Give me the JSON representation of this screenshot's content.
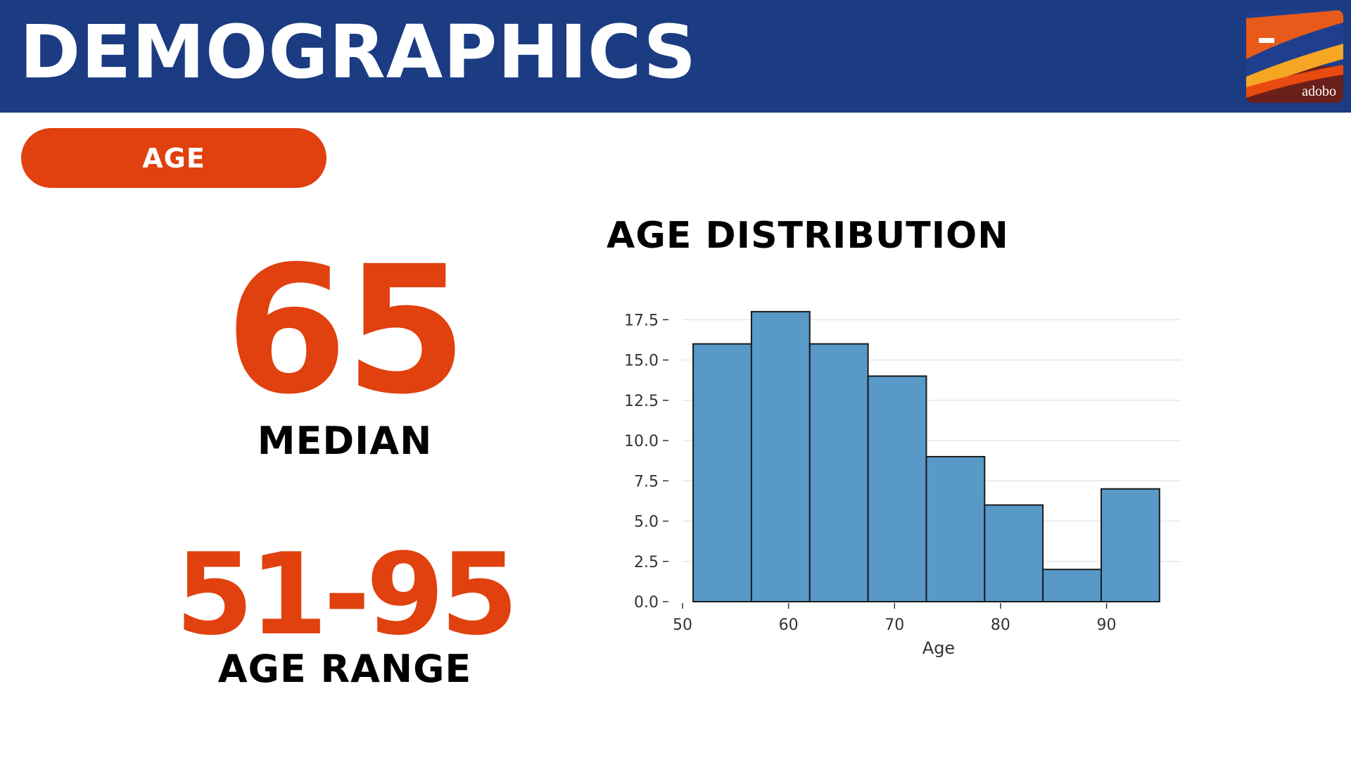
{
  "header": {
    "title": "DEMOGRAPHICS",
    "logo_text": "adobo"
  },
  "section_pill": {
    "label": "AGE"
  },
  "stats": {
    "median": {
      "value": "65",
      "label": "MEDIAN"
    },
    "range": {
      "value": "51-95",
      "label": "AGE RANGE"
    }
  },
  "colors": {
    "header_bg": "#1b3c82",
    "accent": "#e0410f",
    "bar_fill": "#5899c8",
    "bar_edge": "#1a1a1a"
  },
  "chart_data": {
    "type": "bar",
    "title": "AGE DISTRIBUTION",
    "xlabel": "Age",
    "ylabel": "",
    "bins": [
      {
        "x0": 51.0,
        "x1": 56.5,
        "count": 16
      },
      {
        "x0": 56.5,
        "x1": 62.0,
        "count": 18
      },
      {
        "x0": 62.0,
        "x1": 67.5,
        "count": 16
      },
      {
        "x0": 67.5,
        "x1": 73.0,
        "count": 14
      },
      {
        "x0": 73.0,
        "x1": 78.5,
        "count": 9
      },
      {
        "x0": 78.5,
        "x1": 84.0,
        "count": 6
      },
      {
        "x0": 84.0,
        "x1": 89.5,
        "count": 2
      },
      {
        "x0": 89.5,
        "x1": 95.0,
        "count": 7
      }
    ],
    "xlim": [
      50,
      97
    ],
    "ylim": [
      0,
      19
    ],
    "xticks": [
      "50",
      "60",
      "70",
      "80",
      "90"
    ],
    "yticks": [
      "0.0",
      "2.5",
      "5.0",
      "7.5",
      "10.0",
      "12.5",
      "15.0",
      "17.5"
    ],
    "grid": "horizontal"
  }
}
